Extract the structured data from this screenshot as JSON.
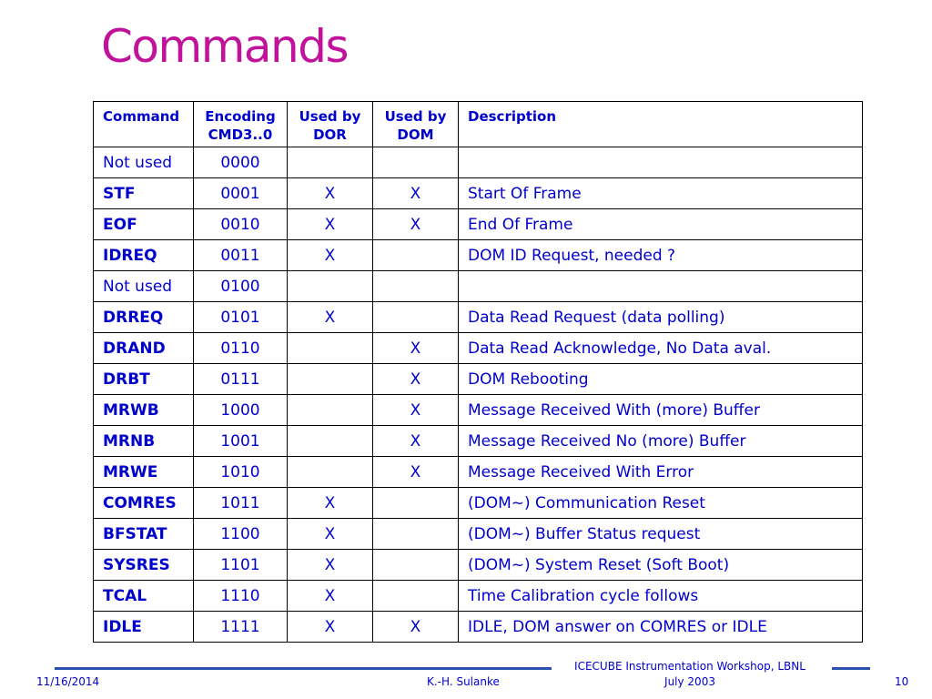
{
  "slide": {
    "title": "Commands"
  },
  "table": {
    "headers": {
      "command": "Command",
      "encoding_1": "Encoding",
      "encoding_2": "CMD3..0",
      "dor_1": "Used by",
      "dor_2": "DOR",
      "dom_1": "Used by",
      "dom_2": "DOM",
      "description": "Description"
    },
    "rows": [
      {
        "command": "Not used",
        "bold": false,
        "encoding": "0000",
        "dor": "",
        "dom": "",
        "description": ""
      },
      {
        "command": "STF",
        "bold": true,
        "encoding": "0001",
        "dor": "X",
        "dom": "X",
        "description": "Start Of Frame"
      },
      {
        "command": "EOF",
        "bold": true,
        "encoding": "0010",
        "dor": "X",
        "dom": "X",
        "description": "End Of Frame"
      },
      {
        "command": "IDREQ",
        "bold": true,
        "encoding": "0011",
        "dor": "X",
        "dom": "",
        "description": "DOM ID Request, needed ?"
      },
      {
        "command": "Not used",
        "bold": false,
        "encoding": "0100",
        "dor": "",
        "dom": "",
        "description": ""
      },
      {
        "command": "DRREQ",
        "bold": true,
        "encoding": "0101",
        "dor": "X",
        "dom": "",
        "description": "Data Read Request (data polling)"
      },
      {
        "command": "DRAND",
        "bold": true,
        "encoding": "0110",
        "dor": "",
        "dom": "X",
        "description": "Data Read Acknowledge, No Data aval."
      },
      {
        "command": "DRBT",
        "bold": true,
        "encoding": "0111",
        "dor": "",
        "dom": "X",
        "description": "DOM Rebooting"
      },
      {
        "command": "MRWB",
        "bold": true,
        "encoding": "1000",
        "dor": "",
        "dom": "X",
        "description": "Message Received With (more) Buffer"
      },
      {
        "command": "MRNB",
        "bold": true,
        "encoding": "1001",
        "dor": "",
        "dom": "X",
        "description": "Message Received No (more) Buffer"
      },
      {
        "command": "MRWE",
        "bold": true,
        "encoding": "1010",
        "dor": "",
        "dom": "X",
        "description": "Message Received With Error"
      },
      {
        "command": "COMRES",
        "bold": true,
        "encoding": "1011",
        "dor": "X",
        "dom": "",
        "description": "(DOM~) Communication Reset"
      },
      {
        "command": "BFSTAT",
        "bold": true,
        "encoding": "1100",
        "dor": "X",
        "dom": "",
        "description": "(DOM~) Buffer Status request"
      },
      {
        "command": "SYSRES",
        "bold": true,
        "encoding": "1101",
        "dor": "X",
        "dom": "",
        "description": "(DOM~) System Reset (Soft Boot)"
      },
      {
        "command": "TCAL",
        "bold": true,
        "encoding": "1110",
        "dor": "X",
        "dom": "",
        "description": "Time Calibration cycle follows"
      },
      {
        "command": "IDLE",
        "bold": true,
        "encoding": "1111",
        "dor": "X",
        "dom": "X",
        "description": "IDLE, DOM answer on COMRES or IDLE"
      }
    ]
  },
  "footer": {
    "date": "11/16/2014",
    "author": "K.-H. Sulanke",
    "event_line1": "ICECUBE Instrumentation Workshop, LBNL",
    "event_line2": "July 2003",
    "page_number": "10"
  },
  "colors": {
    "title": "#c0129a",
    "text": "#0000cc",
    "footer_rule": "#2b4fae"
  }
}
